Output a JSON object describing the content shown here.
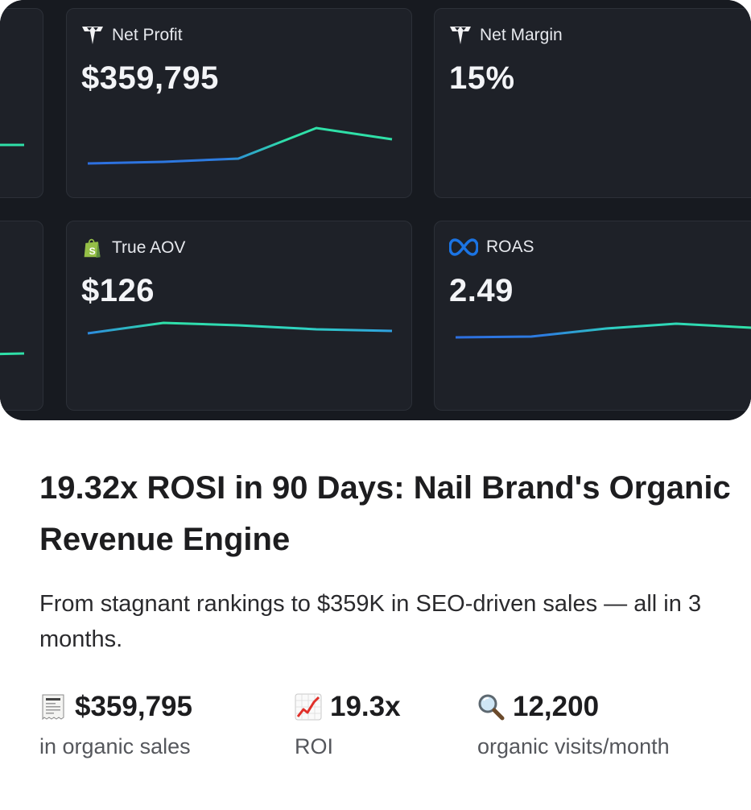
{
  "cards": [
    {
      "id": "net-profit",
      "label": "Net Profit",
      "value": "$359,795",
      "icon": "triple-whale-logo-icon"
    },
    {
      "id": "net-margin",
      "label": "Net Margin",
      "value": "15%",
      "icon": "triple-whale-logo-icon"
    },
    {
      "id": "true-aov",
      "label": "True AOV",
      "value": "$126",
      "icon": "shopify-bag-icon"
    },
    {
      "id": "roas",
      "label": "ROAS",
      "value": "2.49",
      "icon": "meta-infinity-icon"
    }
  ],
  "colors": {
    "trend_start": "#2d6fe0",
    "trend_end": "#2fe0a8",
    "panel_bg": "#111318",
    "card_bg": "#1e2128"
  },
  "case_study": {
    "title": "19.32x ROSI in 90 Days: Nail Brand's Organic Revenue Engine",
    "subtitle": "From stagnant rankings to $359K in SEO-driven sales — all in 3 months."
  },
  "stats": [
    {
      "icon": "receipt-icon",
      "value": "$359,795",
      "label": "in organic sales"
    },
    {
      "icon": "chart-increasing-icon",
      "value": "19.3x",
      "label": "ROI"
    },
    {
      "icon": "magnifying-glass-icon",
      "value": "12,200",
      "label": "organic visits/month"
    }
  ]
}
